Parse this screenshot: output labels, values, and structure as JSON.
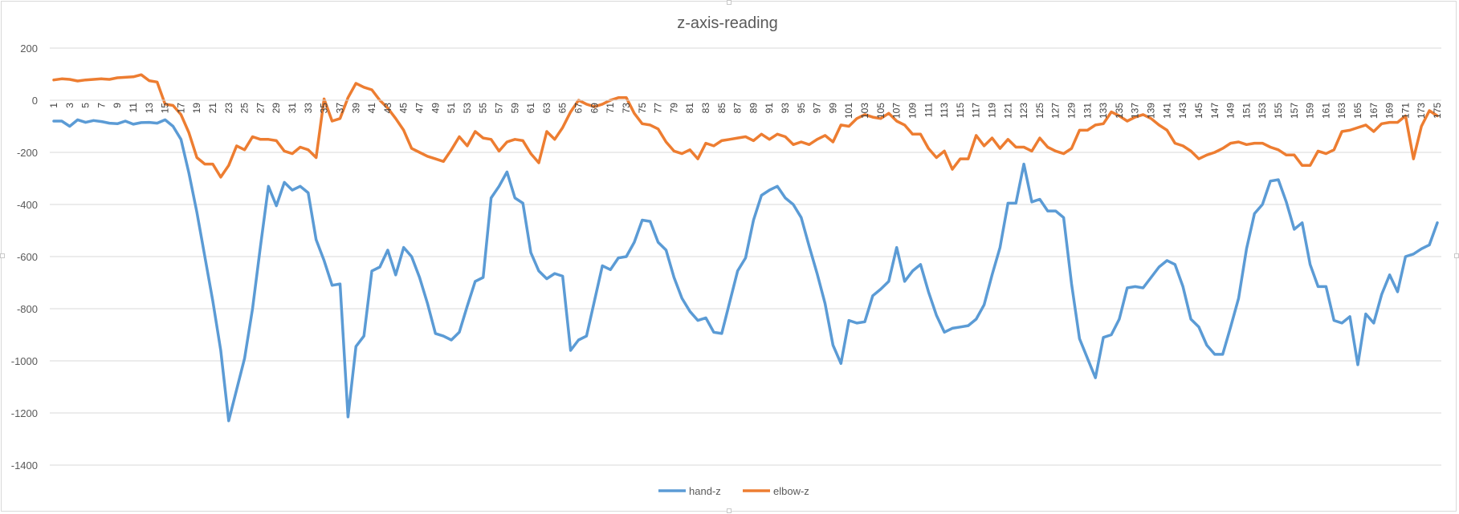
{
  "chart_data": {
    "type": "line",
    "title": "z-axis-reading",
    "xlabel": "",
    "ylabel": "",
    "ylim": [
      -1400,
      200
    ],
    "yticks": [
      200,
      0,
      -200,
      -400,
      -600,
      -800,
      -1000,
      -1200,
      -1400
    ],
    "x_start": 1,
    "x_end": 175,
    "x_label_step": 2,
    "grid": "horizontal",
    "legend_position": "bottom",
    "series": [
      {
        "name": "hand-z",
        "color": "#5b9bd5",
        "values": [
          -80,
          -80,
          -100,
          -75,
          -85,
          -78,
          -82,
          -88,
          -90,
          -80,
          -92,
          -86,
          -85,
          -88,
          -75,
          -100,
          -150,
          -280,
          -430,
          -600,
          -770,
          -960,
          -1230,
          -1110,
          -990,
          -800,
          -560,
          -330,
          -405,
          -315,
          -345,
          -330,
          -355,
          -535,
          -615,
          -710,
          -705,
          -1215,
          -945,
          -905,
          -655,
          -640,
          -575,
          -670,
          -565,
          -600,
          -680,
          -780,
          -895,
          -905,
          -920,
          -890,
          -790,
          -695,
          -680,
          -375,
          -330,
          -275,
          -375,
          -395,
          -585,
          -655,
          -685,
          -665,
          -675,
          -960,
          -920,
          -905,
          -770,
          -635,
          -650,
          -605,
          -600,
          -545,
          -460,
          -465,
          -545,
          -575,
          -680,
          -760,
          -810,
          -845,
          -835,
          -890,
          -895,
          -775,
          -655,
          -605,
          -460,
          -365,
          -345,
          -330,
          -375,
          -400,
          -450,
          -560,
          -665,
          -780,
          -940,
          -1010,
          -845,
          -855,
          -850,
          -750,
          -725,
          -695,
          -565,
          -695,
          -655,
          -630,
          -735,
          -825,
          -890,
          -875,
          -870,
          -865,
          -840,
          -785,
          -670,
          -565,
          -395,
          -395,
          -245,
          -390,
          -380,
          -425,
          -425,
          -450,
          -705,
          -915,
          -990,
          -1065,
          -910,
          -900,
          -840,
          -720,
          -715,
          -720,
          -680,
          -640,
          -615,
          -630,
          -715,
          -840,
          -870,
          -940,
          -975,
          -975,
          -870,
          -760,
          -570,
          -435,
          -400,
          -310,
          -305,
          -390,
          -495,
          -470,
          -630,
          -715,
          -715,
          -845,
          -855,
          -830,
          -1015,
          -820,
          -855,
          -745,
          -670,
          -735,
          -600,
          -590,
          -570,
          -555,
          -470
        ]
      },
      {
        "name": "elbow-z",
        "color": "#ed7d31",
        "values": [
          78,
          82,
          80,
          74,
          78,
          80,
          82,
          80,
          86,
          88,
          90,
          98,
          75,
          70,
          -15,
          -20,
          -55,
          -125,
          -220,
          -245,
          -245,
          -295,
          -250,
          -175,
          -190,
          -140,
          -150,
          -150,
          -155,
          -195,
          -205,
          -180,
          -190,
          -220,
          5,
          -80,
          -70,
          10,
          65,
          50,
          40,
          0,
          -30,
          -70,
          -115,
          -185,
          -200,
          -215,
          -225,
          -235,
          -190,
          -140,
          -175,
          -120,
          -145,
          -150,
          -195,
          -160,
          -150,
          -155,
          -205,
          -240,
          -120,
          -150,
          -105,
          -45,
          0,
          -15,
          -25,
          -15,
          0,
          10,
          10,
          -50,
          -90,
          -95,
          -110,
          -160,
          -195,
          -205,
          -190,
          -225,
          -165,
          -175,
          -155,
          -150,
          -145,
          -140,
          -155,
          -130,
          -150,
          -130,
          -140,
          -170,
          -160,
          -170,
          -150,
          -135,
          -160,
          -95,
          -100,
          -70,
          -55,
          -65,
          -70,
          -50,
          -80,
          -95,
          -130,
          -130,
          -185,
          -220,
          -195,
          -265,
          -225,
          -225,
          -135,
          -175,
          -145,
          -185,
          -150,
          -180,
          -180,
          -195,
          -145,
          -180,
          -195,
          -205,
          -185,
          -115,
          -115,
          -95,
          -90,
          -45,
          -60,
          -80,
          -65,
          -55,
          -70,
          -95,
          -115,
          -165,
          -175,
          -195,
          -225,
          -210,
          -200,
          -185,
          -165,
          -160,
          -170,
          -165,
          -165,
          -180,
          -190,
          -210,
          -210,
          -250,
          -250,
          -195,
          -205,
          -190,
          -120,
          -115,
          -105,
          -95,
          -120,
          -90,
          -85,
          -85,
          -60,
          -225,
          -100,
          -40,
          -60
        ]
      }
    ]
  }
}
